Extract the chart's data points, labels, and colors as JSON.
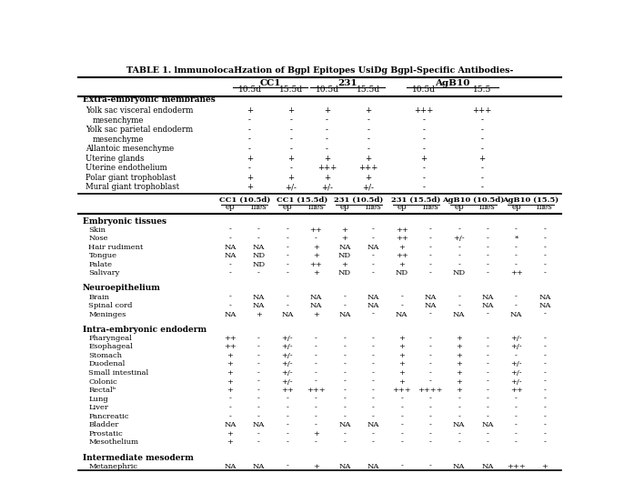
{
  "title": "TABLE 1. lmmunolocaHzation of Bgpl Epitopes UsiDg Bgpl-Specific Antibodies-",
  "top_section_headers": [
    "CC1",
    "231",
    "AgB10"
  ],
  "top_subheaders": [
    "10.5d",
    "15.5d",
    "10.5d",
    "15.5d",
    "10.5d",
    "15.5"
  ],
  "top_section_label": "Extra-embryonic membranes",
  "top_rows": [
    [
      "Yolk sac visceral endoderm",
      "+",
      "+",
      "+",
      "+",
      "+++",
      "+++"
    ],
    [
      "mesenchyme",
      "-",
      "-",
      "-",
      "-",
      "-",
      "-"
    ],
    [
      "Yolk sac parietal endoderm",
      "-",
      "-",
      "-",
      "-",
      "-",
      "-"
    ],
    [
      "mesenchyme",
      "-",
      "-",
      "-",
      "-",
      "-",
      "-"
    ],
    [
      "Allantoic mesenchyme",
      "-",
      "-",
      "-",
      "-",
      "-",
      "-"
    ],
    [
      "Uterine glands",
      "+",
      "+",
      "+",
      "+",
      "+",
      "+"
    ],
    [
      "Uterine endothelium",
      "-",
      "-",
      "+++",
      "+++",
      "-",
      "-"
    ],
    [
      "Polar giant trophoblast",
      "+",
      "+",
      "+",
      "+",
      "-",
      "-"
    ],
    [
      "Mural giant trophoblast",
      "+",
      "+/-",
      "+/-",
      "+/-",
      "-",
      "-"
    ]
  ],
  "bottom_headers_groups": [
    "CC1 (10.5d)",
    "CC1 (15.5d)",
    "231 (10.5d)",
    "231 (15.5d)",
    "AgB10 (10.5d)",
    "AgB10 (15.5)"
  ],
  "bottom_subheaders": [
    "ep",
    "mes",
    "ep",
    "mes",
    "ep",
    "mes",
    "ep",
    "mes",
    "ep",
    "mes",
    "ep",
    "mes"
  ],
  "sections": [
    {
      "section_label": "Embryonic tissues",
      "rows": [
        [
          "Skin",
          "-",
          "-",
          "-",
          "++",
          "+",
          "-",
          "++",
          "-",
          "-",
          "-",
          "-",
          "-"
        ],
        [
          "Nose",
          "-",
          "-",
          "-",
          "-",
          "+",
          "-",
          "++",
          "-",
          "+/-",
          "-",
          "*",
          "-"
        ],
        [
          "Hair rudiment",
          "NA",
          "NA",
          "-",
          "+",
          "NA",
          "NA",
          "+",
          "-",
          "-",
          "-",
          "-",
          "-"
        ],
        [
          "Tongue",
          "NA",
          "ND",
          "-",
          "+",
          "ND",
          "-",
          "++",
          "-",
          "-",
          "-",
          "-",
          "-"
        ],
        [
          "Palate",
          "-",
          "ND",
          "-",
          "++",
          "+",
          "-",
          "+",
          "-",
          "-",
          "-",
          "-",
          "-"
        ],
        [
          "Salivary",
          "-",
          "-",
          "-",
          "+",
          "ND",
          "-",
          "ND",
          "-",
          "ND",
          "-",
          "++",
          "-"
        ]
      ]
    },
    {
      "section_label": "Neuroepithelium",
      "rows": [
        [
          "Brain",
          "-",
          "NA",
          "-",
          "NA",
          "-",
          "NA",
          "-",
          "NA",
          "-",
          "NA",
          "-",
          "NA"
        ],
        [
          "Spinal cord",
          "-",
          "NA",
          "-",
          "NA",
          "-",
          "NA",
          "-",
          "NA",
          "-",
          "NA",
          "-",
          "NA"
        ],
        [
          "Meninges",
          "NA",
          "+",
          "NA",
          "+",
          "NA",
          "-",
          "NA",
          "-",
          "NA",
          "-",
          "NA",
          "-"
        ]
      ]
    },
    {
      "section_label": "Intra-embryonic endoderm",
      "rows": [
        [
          "Pharyngeal",
          "++",
          "-",
          "+/-",
          "-",
          "-",
          "-",
          "+",
          "-",
          "+",
          "-",
          "+/-",
          "-"
        ],
        [
          "Esophageal",
          "++",
          "-",
          "+/-",
          "-",
          "-",
          "-",
          "+",
          "-",
          "+",
          "-",
          "+/-",
          "-"
        ],
        [
          "Stomach",
          "+",
          "-",
          "+/-",
          "-",
          "-",
          "-",
          "+",
          "-",
          "+",
          "-",
          "-",
          "-"
        ],
        [
          "Duodenal",
          "+",
          "-",
          "+/-",
          "-",
          "-",
          "-",
          "+",
          "-",
          "+",
          "-",
          "+/-",
          "-"
        ],
        [
          "Small intestinal",
          "+",
          "-",
          "+/-",
          "-",
          "-",
          "-",
          "+",
          "-",
          "+",
          "-",
          "+/-",
          "-"
        ],
        [
          "Colonic",
          "+",
          "-",
          "+/-",
          "-",
          "-",
          "-",
          "+",
          "-",
          "+",
          "-",
          "+/-",
          "-"
        ],
        [
          "Rectalᵇ",
          "+",
          "-",
          "++",
          "+++",
          "-",
          "-",
          "+++",
          "++++",
          "+",
          "-",
          "++",
          "-"
        ],
        [
          "Lung",
          "-",
          "-",
          "-",
          "-",
          "-",
          "-",
          "-",
          "-",
          "-",
          "-",
          "-",
          "-"
        ],
        [
          "Liver",
          "-",
          "-",
          "-",
          "-",
          "-",
          "-",
          "-",
          "-",
          "-",
          "-",
          "-",
          "-"
        ],
        [
          "Pancreatic",
          "-",
          "-",
          "-",
          "-",
          "-",
          "-",
          "-",
          "-",
          "-",
          "-",
          "-",
          "-"
        ],
        [
          "Bladder",
          "NA",
          "NA",
          "-",
          "-",
          "NA",
          "NA",
          "-",
          "-",
          "NA",
          "NA",
          "-",
          "-"
        ],
        [
          "Prostatic",
          "+",
          "-",
          "-",
          "+",
          "-",
          "-",
          "-",
          "-",
          "-",
          "-",
          "-",
          "-"
        ],
        [
          "Mesothelium",
          "+",
          "-",
          "-",
          "-",
          "-",
          "-",
          "-",
          "-",
          "-",
          "-",
          "-",
          "-"
        ]
      ]
    },
    {
      "section_label": "Intermediate mesoderm",
      "rows": [
        [
          "Metanephric",
          "NA",
          "NA",
          "-",
          "+",
          "NA",
          "NA",
          "-",
          "-",
          "NA",
          "NA",
          "+++",
          "+"
        ]
      ]
    }
  ]
}
